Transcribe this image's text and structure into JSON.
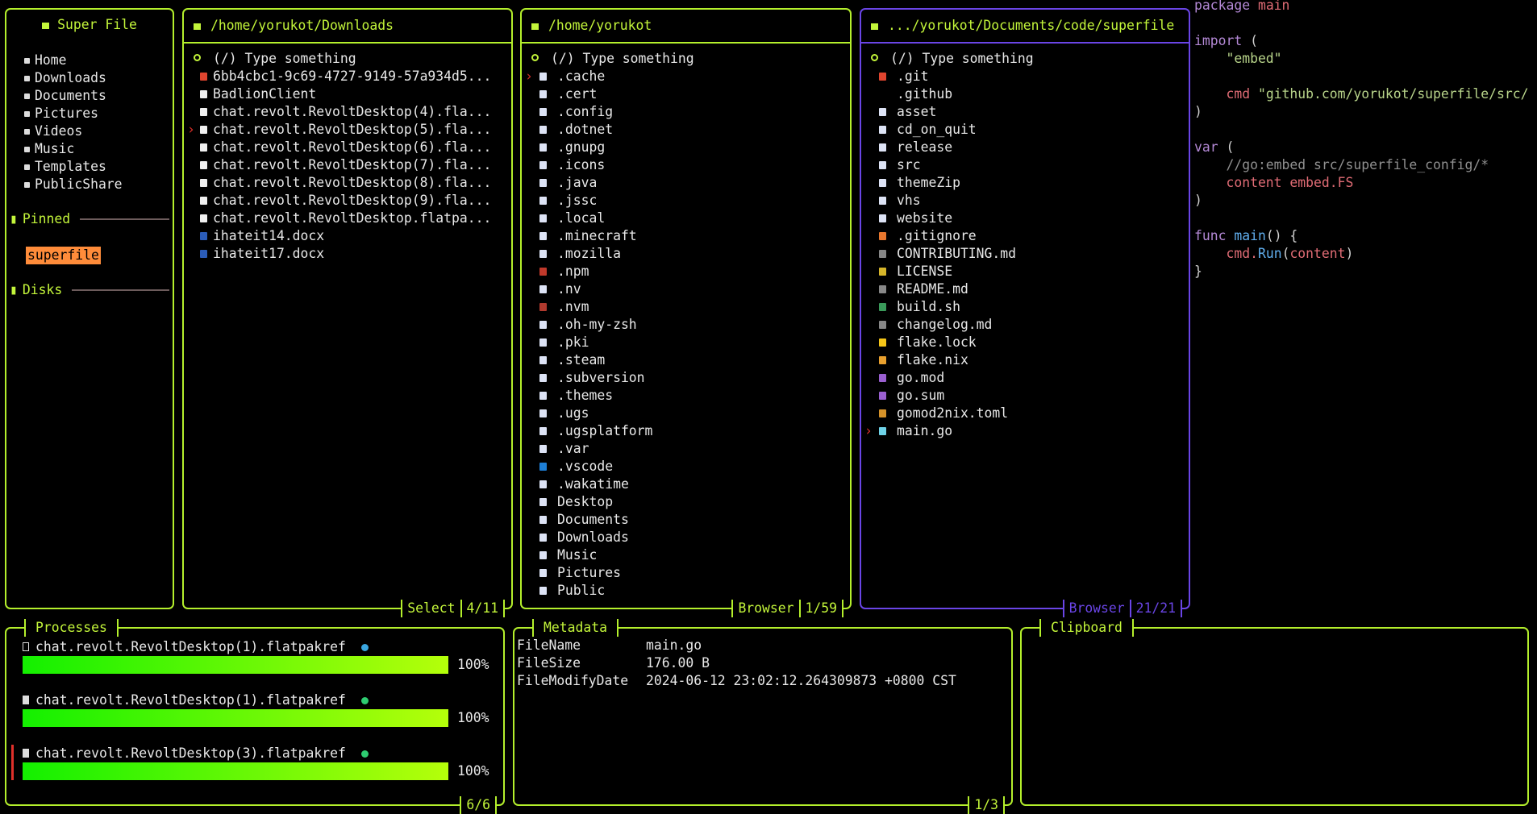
{
  "colors": {
    "accent": "#b4ef2c",
    "active": "#6a45e6",
    "pinned_bg": "#ff8c3a",
    "cursor": "#e0302a"
  },
  "sidebar": {
    "title": "Super File",
    "items": [
      {
        "label": "Home",
        "icon": "home-icon"
      },
      {
        "label": "Downloads",
        "icon": "download-icon"
      },
      {
        "label": "Documents",
        "icon": "document-icon"
      },
      {
        "label": "Pictures",
        "icon": "picture-icon"
      },
      {
        "label": "Videos",
        "icon": "video-icon"
      },
      {
        "label": "Music",
        "icon": "music-icon"
      },
      {
        "label": "Templates",
        "icon": "paperclip-icon"
      },
      {
        "label": "PublicShare",
        "icon": "globe-icon"
      }
    ],
    "pinned_label": "Pinned",
    "pinned": [
      "superfile"
    ],
    "disks_label": "Disks"
  },
  "panels": [
    {
      "path": "/home/yorukot/Downloads",
      "search": "(/) Type something",
      "mode": "Select",
      "count": "4/11",
      "cursor": 3,
      "files": [
        [
          "6bb4cbc1-9c69-4727-9149-57a934d5...",
          "#e0452f"
        ],
        [
          "BadlionClient",
          "#f0f0f0"
        ],
        [
          "chat.revolt.RevoltDesktop(4).fla...",
          "#f0f0f0"
        ],
        [
          "chat.revolt.RevoltDesktop(5).fla...",
          "#f0f0f0"
        ],
        [
          "chat.revolt.RevoltDesktop(6).fla...",
          "#f0f0f0"
        ],
        [
          "chat.revolt.RevoltDesktop(7).fla...",
          "#f0f0f0"
        ],
        [
          "chat.revolt.RevoltDesktop(8).fla...",
          "#f0f0f0"
        ],
        [
          "chat.revolt.RevoltDesktop(9).fla...",
          "#f0f0f0"
        ],
        [
          "chat.revolt.RevoltDesktop.flatpa...",
          "#f0f0f0"
        ],
        [
          "ihateit14.docx",
          "#2b5cb8"
        ],
        [
          "ihateit17.docx",
          "#2b5cb8"
        ]
      ]
    },
    {
      "path": "/home/yorukot",
      "search": "(/) Type something",
      "mode": "Browser",
      "count": "1/59",
      "cursor": 0,
      "files": [
        [
          ".cache",
          "#dde3f5"
        ],
        [
          ".cert",
          "#dde3f5"
        ],
        [
          ".config",
          "#dde3f5"
        ],
        [
          ".dotnet",
          "#dde3f5"
        ],
        [
          ".gnupg",
          "#dde3f5"
        ],
        [
          ".icons",
          "#dde3f5"
        ],
        [
          ".java",
          "#dde3f5"
        ],
        [
          ".jssc",
          "#dde3f5"
        ],
        [
          ".local",
          "#dde3f5"
        ],
        [
          ".minecraft",
          "#dde3f5"
        ],
        [
          ".mozilla",
          "#dde3f5"
        ],
        [
          ".npm",
          "#c0392b"
        ],
        [
          ".nv",
          "#dde3f5"
        ],
        [
          ".nvm",
          "#b03a2e"
        ],
        [
          ".oh-my-zsh",
          "#dde3f5"
        ],
        [
          ".pki",
          "#dde3f5"
        ],
        [
          ".steam",
          "#dde3f5"
        ],
        [
          ".subversion",
          "#dde3f5"
        ],
        [
          ".themes",
          "#dde3f5"
        ],
        [
          ".ugs",
          "#dde3f5"
        ],
        [
          ".ugsplatform",
          "#dde3f5"
        ],
        [
          ".var",
          "#dde3f5"
        ],
        [
          ".vscode",
          "#1e7fd6"
        ],
        [
          ".wakatime",
          "#dde3f5"
        ],
        [
          "Desktop",
          "#dde3f5"
        ],
        [
          "Documents",
          "#dde3f5"
        ],
        [
          "Downloads",
          "#dde3f5"
        ],
        [
          "Music",
          "#dde3f5"
        ],
        [
          "Pictures",
          "#dde3f5"
        ],
        [
          "Public",
          "#dde3f5"
        ]
      ]
    },
    {
      "path": ".../yorukot/Documents/code/superfile",
      "search": "(/) Type something",
      "mode": "Browser",
      "count": "21/21",
      "cursor": 20,
      "files": [
        [
          ".git",
          "#e0452f"
        ],
        [
          ".github",
          "#000000"
        ],
        [
          "asset",
          "#dde3f5"
        ],
        [
          "cd_on_quit",
          "#dde3f5"
        ],
        [
          "release",
          "#dde3f5"
        ],
        [
          "src",
          "#dde3f5"
        ],
        [
          "themeZip",
          "#dde3f5"
        ],
        [
          "vhs",
          "#dde3f5"
        ],
        [
          "website",
          "#dde3f5"
        ],
        [
          ".gitignore",
          "#e8772e"
        ],
        [
          "CONTRIBUTING.md",
          "#888888"
        ],
        [
          "LICENSE",
          "#d6b52a"
        ],
        [
          "README.md",
          "#888888"
        ],
        [
          "build.sh",
          "#3a9a5a"
        ],
        [
          "changelog.md",
          "#888888"
        ],
        [
          "flake.lock",
          "#f5c518"
        ],
        [
          "flake.nix",
          "#e8a02e"
        ],
        [
          "go.mod",
          "#9a5fd0"
        ],
        [
          "go.sum",
          "#9a5fd0"
        ],
        [
          "gomod2nix.toml",
          "#d6932a"
        ],
        [
          "main.go",
          "#6fd3e8"
        ]
      ]
    }
  ],
  "preview": [
    [
      [
        "package",
        "#b489d6"
      ],
      [
        " main",
        "#e06c75"
      ]
    ],
    [],
    [
      [
        "import",
        "#b489d6"
      ],
      [
        " (",
        "#d0d0d0"
      ]
    ],
    [
      [
        "    \"embed\"",
        "#b8d48a"
      ]
    ],
    [],
    [
      [
        "    cmd ",
        "#e06c75"
      ],
      [
        "\"github.com/yorukot/superfile/src/",
        "#b8d48a"
      ]
    ],
    [
      [
        ")",
        "#d0d0d0"
      ]
    ],
    [],
    [
      [
        "var",
        "#b489d6"
      ],
      [
        " (",
        "#d0d0d0"
      ]
    ],
    [
      [
        "    //go:embed src/superfile_config/*",
        "#909090"
      ]
    ],
    [
      [
        "    content embed.FS",
        "#e06c75"
      ]
    ],
    [
      [
        ")",
        "#d0d0d0"
      ]
    ],
    [],
    [
      [
        "func ",
        "#b489d6"
      ],
      [
        "main",
        "#61afef"
      ],
      [
        "() {",
        "#d0d0d0"
      ]
    ],
    [
      [
        "    cmd.",
        "#e06c75"
      ],
      [
        "Run",
        "#61afef"
      ],
      [
        "(",
        "#d0d0d0"
      ],
      [
        "content",
        "#e06c75"
      ],
      [
        ")",
        "#d0d0d0"
      ]
    ],
    [
      [
        "}",
        "#d0d0d0"
      ]
    ]
  ],
  "processes": {
    "title": "Processes",
    "count": "6/6",
    "items": [
      {
        "name": "chat.revolt.RevoltDesktop(1).flatpakref",
        "icon": "copy-icon",
        "status": "in-progress",
        "status_color": "#3aa6e0",
        "progress": 100,
        "percent": "100%"
      },
      {
        "name": "chat.revolt.RevoltDesktop(1).flatpakref",
        "icon": "trash-icon",
        "status": "done",
        "status_color": "#2ecc71",
        "progress": 100,
        "percent": "100%"
      },
      {
        "name": "chat.revolt.RevoltDesktop(3).flatpakref",
        "icon": "trash-icon",
        "status": "done",
        "status_color": "#2ecc71",
        "progress": 100,
        "percent": "100%"
      }
    ]
  },
  "metadata": {
    "title": "Metadata",
    "count": "1/3",
    "rows": [
      [
        "FileName",
        "main.go"
      ],
      [
        "FileSize",
        "176.00 B"
      ],
      [
        "FileModifyDate",
        "2024-06-12 23:02:12.264309873 +0800 CST"
      ]
    ]
  },
  "clipboard": {
    "title": "Clipboard"
  }
}
